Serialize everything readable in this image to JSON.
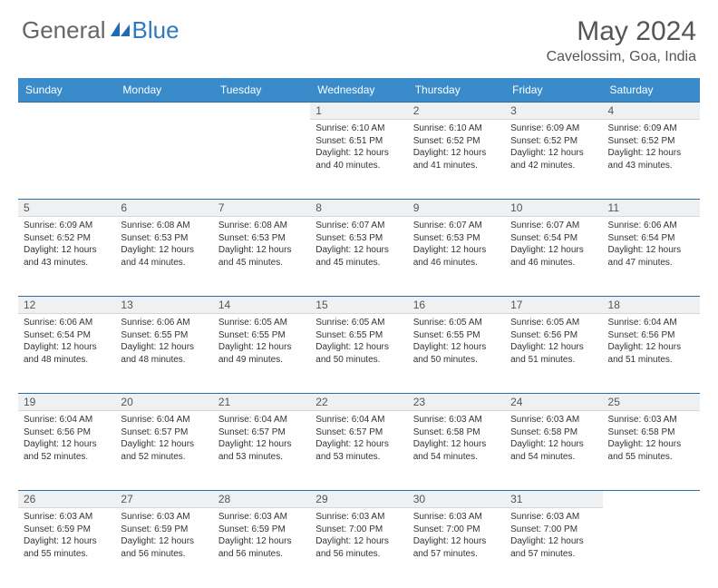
{
  "brand": {
    "part1": "General",
    "part2": "Blue"
  },
  "title": "May 2024",
  "location": "Cavelossim, Goa, India",
  "colors": {
    "header_bg": "#3a8bc9",
    "header_text": "#ffffff",
    "daynum_bg": "#eef0f1",
    "row_border": "#2b6fa8",
    "text": "#333333",
    "brand_blue": "#2b7bbf",
    "brand_gray": "#666666"
  },
  "day_headers": [
    "Sunday",
    "Monday",
    "Tuesday",
    "Wednesday",
    "Thursday",
    "Friday",
    "Saturday"
  ],
  "weeks": [
    [
      null,
      null,
      null,
      {
        "n": "1",
        "sunrise": "6:10 AM",
        "sunset": "6:51 PM",
        "daylight": "12 hours and 40 minutes."
      },
      {
        "n": "2",
        "sunrise": "6:10 AM",
        "sunset": "6:52 PM",
        "daylight": "12 hours and 41 minutes."
      },
      {
        "n": "3",
        "sunrise": "6:09 AM",
        "sunset": "6:52 PM",
        "daylight": "12 hours and 42 minutes."
      },
      {
        "n": "4",
        "sunrise": "6:09 AM",
        "sunset": "6:52 PM",
        "daylight": "12 hours and 43 minutes."
      }
    ],
    [
      {
        "n": "5",
        "sunrise": "6:09 AM",
        "sunset": "6:52 PM",
        "daylight": "12 hours and 43 minutes."
      },
      {
        "n": "6",
        "sunrise": "6:08 AM",
        "sunset": "6:53 PM",
        "daylight": "12 hours and 44 minutes."
      },
      {
        "n": "7",
        "sunrise": "6:08 AM",
        "sunset": "6:53 PM",
        "daylight": "12 hours and 45 minutes."
      },
      {
        "n": "8",
        "sunrise": "6:07 AM",
        "sunset": "6:53 PM",
        "daylight": "12 hours and 45 minutes."
      },
      {
        "n": "9",
        "sunrise": "6:07 AM",
        "sunset": "6:53 PM",
        "daylight": "12 hours and 46 minutes."
      },
      {
        "n": "10",
        "sunrise": "6:07 AM",
        "sunset": "6:54 PM",
        "daylight": "12 hours and 46 minutes."
      },
      {
        "n": "11",
        "sunrise": "6:06 AM",
        "sunset": "6:54 PM",
        "daylight": "12 hours and 47 minutes."
      }
    ],
    [
      {
        "n": "12",
        "sunrise": "6:06 AM",
        "sunset": "6:54 PM",
        "daylight": "12 hours and 48 minutes."
      },
      {
        "n": "13",
        "sunrise": "6:06 AM",
        "sunset": "6:55 PM",
        "daylight": "12 hours and 48 minutes."
      },
      {
        "n": "14",
        "sunrise": "6:05 AM",
        "sunset": "6:55 PM",
        "daylight": "12 hours and 49 minutes."
      },
      {
        "n": "15",
        "sunrise": "6:05 AM",
        "sunset": "6:55 PM",
        "daylight": "12 hours and 50 minutes."
      },
      {
        "n": "16",
        "sunrise": "6:05 AM",
        "sunset": "6:55 PM",
        "daylight": "12 hours and 50 minutes."
      },
      {
        "n": "17",
        "sunrise": "6:05 AM",
        "sunset": "6:56 PM",
        "daylight": "12 hours and 51 minutes."
      },
      {
        "n": "18",
        "sunrise": "6:04 AM",
        "sunset": "6:56 PM",
        "daylight": "12 hours and 51 minutes."
      }
    ],
    [
      {
        "n": "19",
        "sunrise": "6:04 AM",
        "sunset": "6:56 PM",
        "daylight": "12 hours and 52 minutes."
      },
      {
        "n": "20",
        "sunrise": "6:04 AM",
        "sunset": "6:57 PM",
        "daylight": "12 hours and 52 minutes."
      },
      {
        "n": "21",
        "sunrise": "6:04 AM",
        "sunset": "6:57 PM",
        "daylight": "12 hours and 53 minutes."
      },
      {
        "n": "22",
        "sunrise": "6:04 AM",
        "sunset": "6:57 PM",
        "daylight": "12 hours and 53 minutes."
      },
      {
        "n": "23",
        "sunrise": "6:03 AM",
        "sunset": "6:58 PM",
        "daylight": "12 hours and 54 minutes."
      },
      {
        "n": "24",
        "sunrise": "6:03 AM",
        "sunset": "6:58 PM",
        "daylight": "12 hours and 54 minutes."
      },
      {
        "n": "25",
        "sunrise": "6:03 AM",
        "sunset": "6:58 PM",
        "daylight": "12 hours and 55 minutes."
      }
    ],
    [
      {
        "n": "26",
        "sunrise": "6:03 AM",
        "sunset": "6:59 PM",
        "daylight": "12 hours and 55 minutes."
      },
      {
        "n": "27",
        "sunrise": "6:03 AM",
        "sunset": "6:59 PM",
        "daylight": "12 hours and 56 minutes."
      },
      {
        "n": "28",
        "sunrise": "6:03 AM",
        "sunset": "6:59 PM",
        "daylight": "12 hours and 56 minutes."
      },
      {
        "n": "29",
        "sunrise": "6:03 AM",
        "sunset": "7:00 PM",
        "daylight": "12 hours and 56 minutes."
      },
      {
        "n": "30",
        "sunrise": "6:03 AM",
        "sunset": "7:00 PM",
        "daylight": "12 hours and 57 minutes."
      },
      {
        "n": "31",
        "sunrise": "6:03 AM",
        "sunset": "7:00 PM",
        "daylight": "12 hours and 57 minutes."
      },
      null
    ]
  ],
  "labels": {
    "sunrise": "Sunrise:",
    "sunset": "Sunset:",
    "daylight": "Daylight:"
  }
}
